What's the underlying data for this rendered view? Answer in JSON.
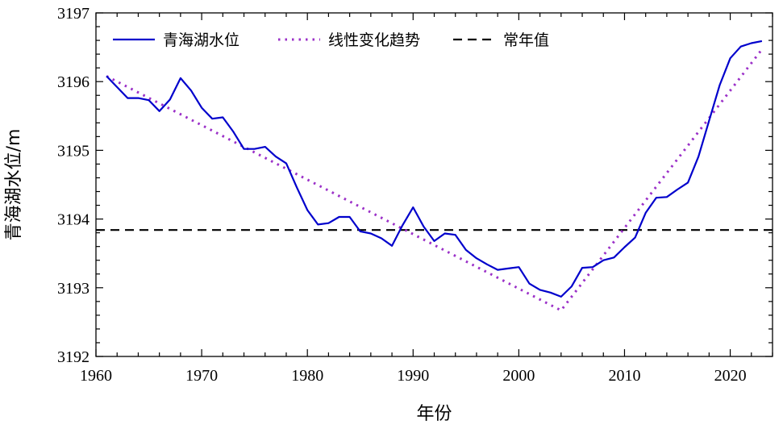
{
  "chart_data": {
    "type": "line",
    "xlabel": "年份",
    "ylabel": "青海湖水位/m",
    "xlim": [
      1960,
      2024
    ],
    "ylim": [
      3192,
      3197
    ],
    "xticks": [
      1960,
      1970,
      1980,
      1990,
      2000,
      2010,
      2020
    ],
    "yticks": [
      3192,
      3193,
      3194,
      3195,
      3196,
      3197
    ],
    "grid": false,
    "legend_position": "top-left",
    "series": [
      {
        "name": "青海湖水位",
        "style": "solid",
        "color": "#0000cc",
        "x": [
          1961,
          1962,
          1963,
          1964,
          1965,
          1966,
          1967,
          1968,
          1969,
          1970,
          1971,
          1972,
          1973,
          1974,
          1975,
          1976,
          1977,
          1978,
          1979,
          1980,
          1981,
          1982,
          1983,
          1984,
          1985,
          1986,
          1987,
          1988,
          1989,
          1990,
          1991,
          1992,
          1993,
          1994,
          1995,
          1996,
          1997,
          1998,
          1999,
          2000,
          2001,
          2002,
          2003,
          2004,
          2005,
          2006,
          2007,
          2008,
          2009,
          2010,
          2011,
          2012,
          2013,
          2014,
          2015,
          2016,
          2017,
          2018,
          2019,
          2020,
          2021,
          2022,
          2023
        ],
        "values": [
          3196.08,
          3195.92,
          3195.76,
          3195.76,
          3195.73,
          3195.57,
          3195.74,
          3196.05,
          3195.87,
          3195.62,
          3195.46,
          3195.48,
          3195.27,
          3195.02,
          3195.02,
          3195.05,
          3194.91,
          3194.81,
          3194.46,
          3194.13,
          3193.92,
          3193.94,
          3194.03,
          3194.03,
          3193.82,
          3193.79,
          3193.72,
          3193.61,
          3193.91,
          3194.17,
          3193.89,
          3193.68,
          3193.79,
          3193.77,
          3193.55,
          3193.43,
          3193.34,
          3193.26,
          3193.28,
          3193.3,
          3193.06,
          3192.97,
          3192.93,
          3192.87,
          3193.02,
          3193.29,
          3193.3,
          3193.4,
          3193.44,
          3193.59,
          3193.73,
          3194.09,
          3194.31,
          3194.32,
          3194.43,
          3194.53,
          3194.91,
          3195.43,
          3195.95,
          3196.34,
          3196.51,
          3196.56,
          3196.59
        ]
      },
      {
        "name": "线性变化趋势",
        "style": "dotted",
        "color": "#9b30c8",
        "x": [
          1961,
          2004,
          2023
        ],
        "values": [
          3196.08,
          3192.67,
          3196.47
        ]
      },
      {
        "name": "常年值",
        "style": "dashed",
        "color": "#000000",
        "x": [
          1960,
          2024
        ],
        "values": [
          3193.84,
          3193.84
        ]
      }
    ]
  }
}
